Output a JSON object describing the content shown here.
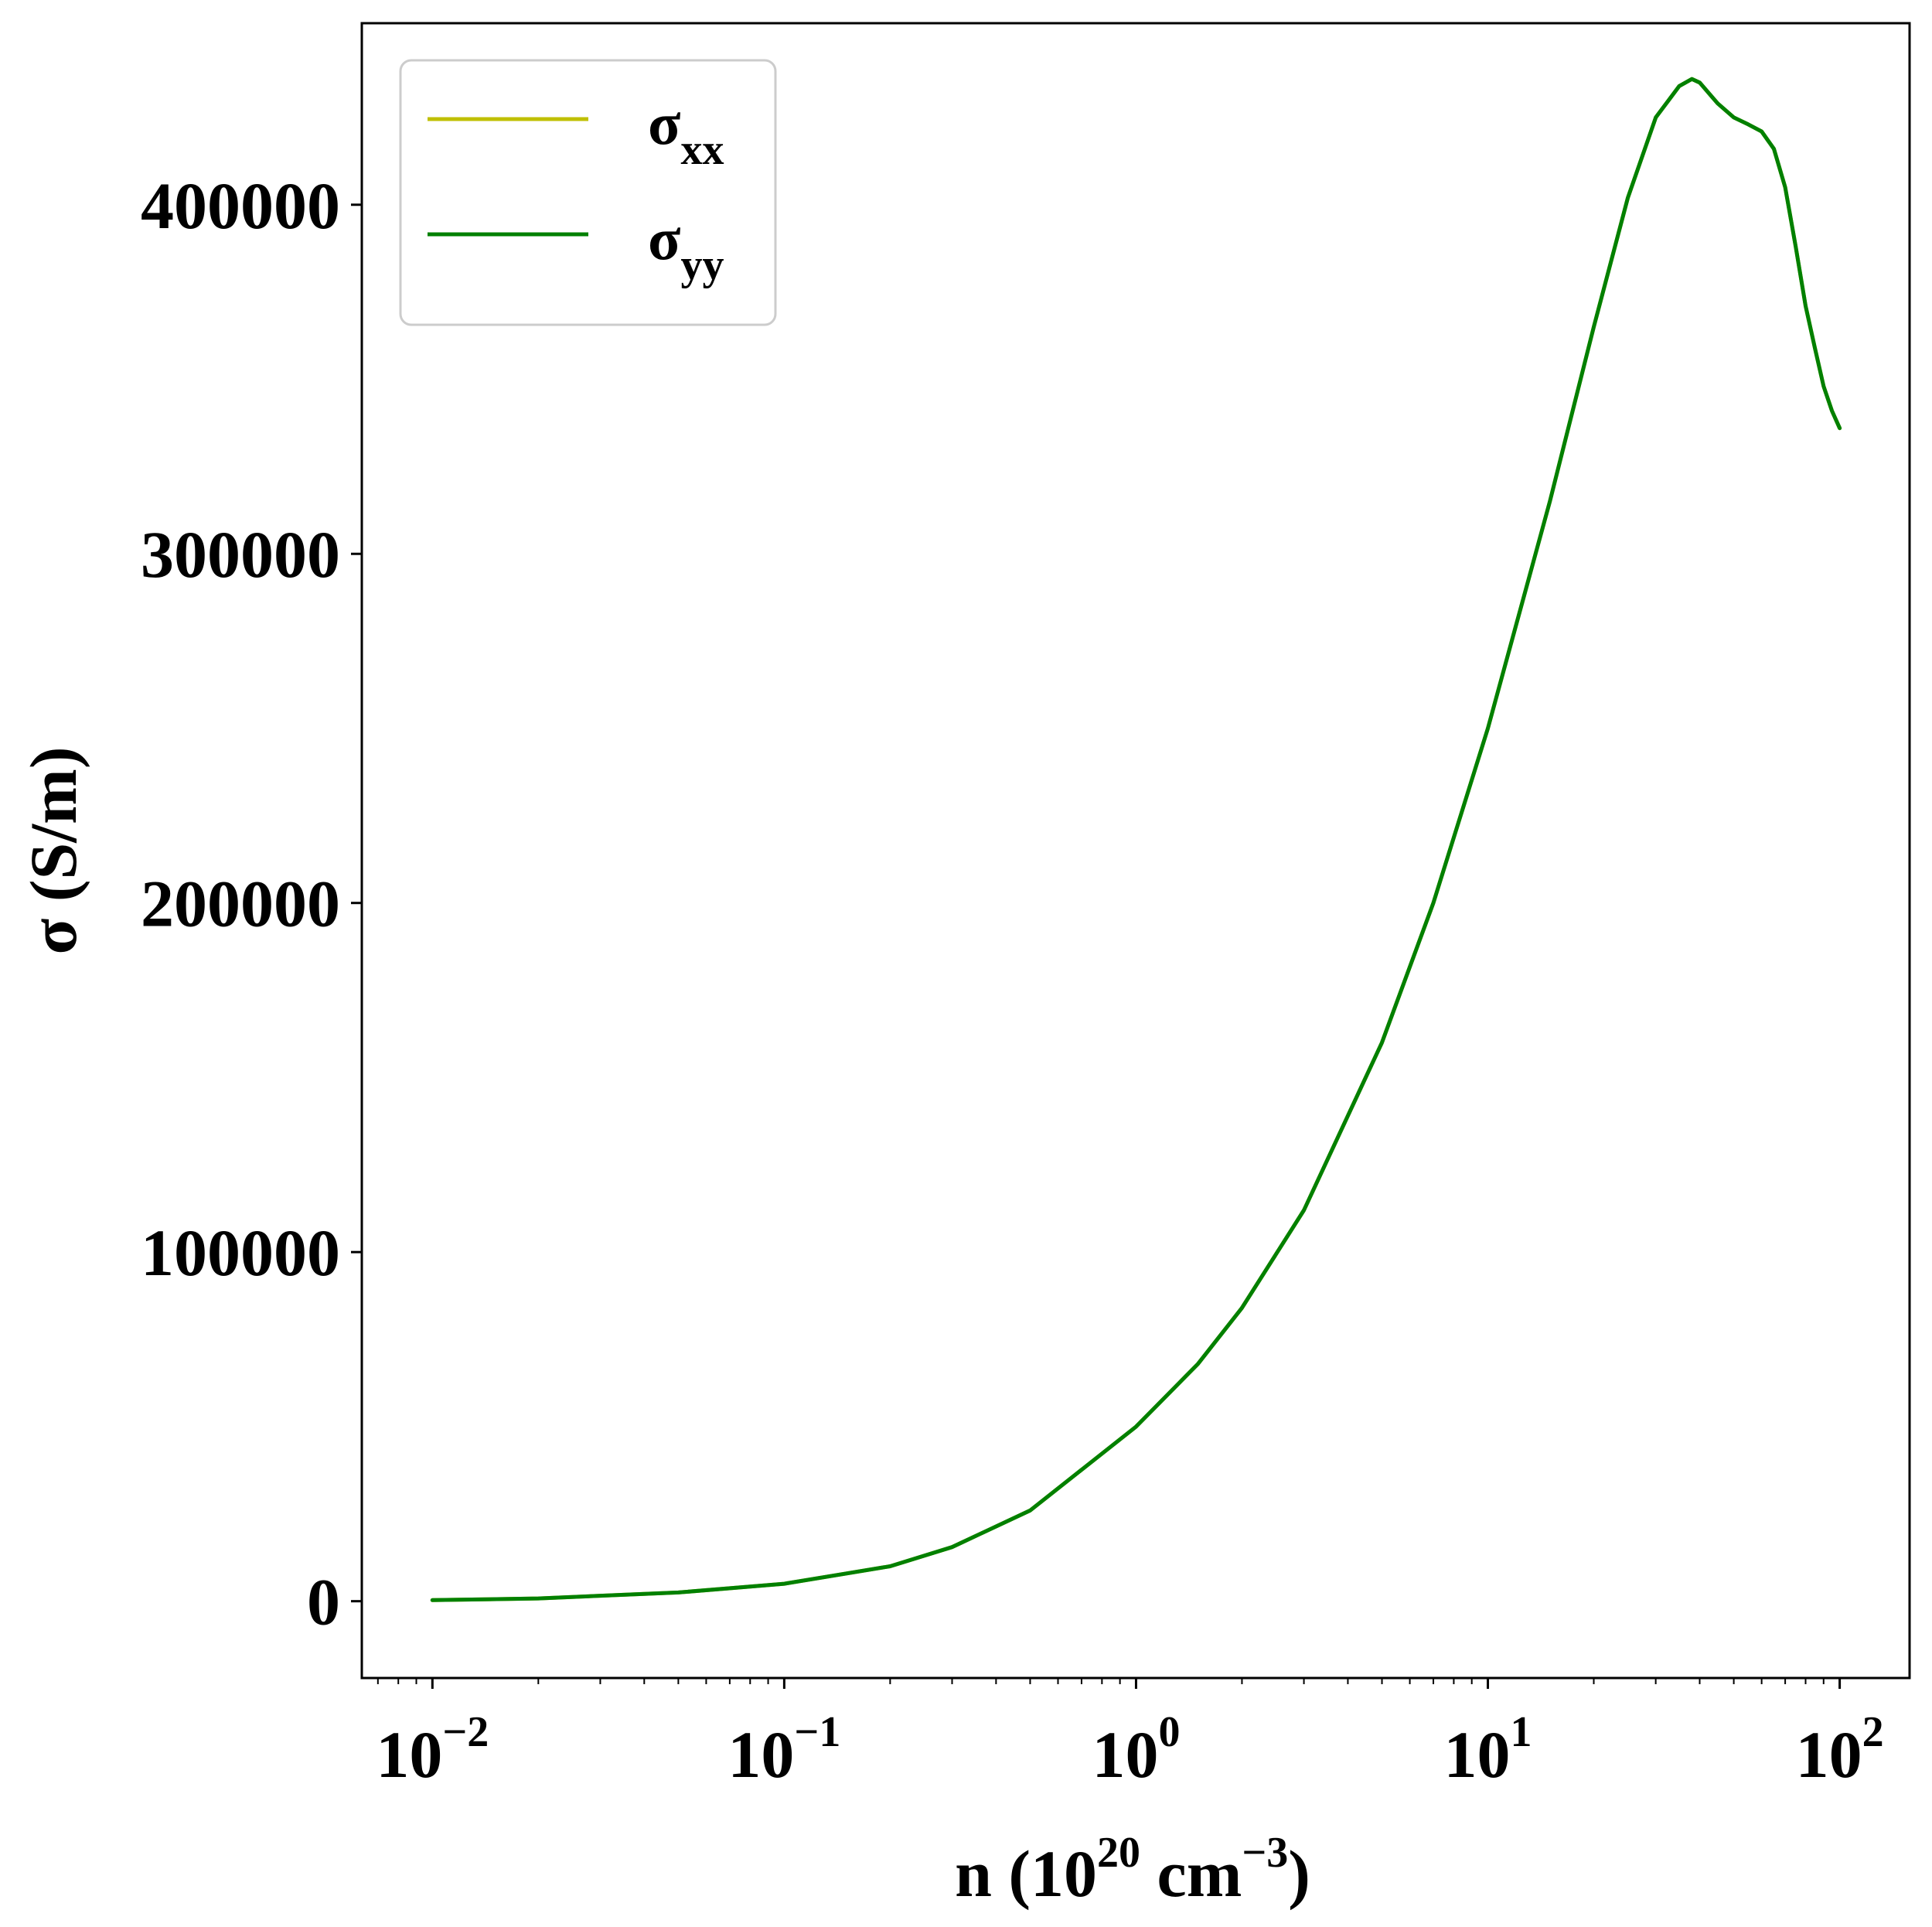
{
  "chart_data": {
    "type": "line",
    "title": "",
    "x_scale": "log",
    "xlabel": {
      "base": "n (10",
      "sup1": "20",
      "mid": " cm",
      "sup2": "−3",
      "end": ")"
    },
    "ylabel": "σ (S/m)",
    "xlim": [
      0.0063,
      158
    ],
    "ylim": [
      -22000,
      452000
    ],
    "x_ticks": [
      {
        "value": 0.01,
        "base": "10",
        "exp": "−2"
      },
      {
        "value": 0.1,
        "base": "10",
        "exp": "−1"
      },
      {
        "value": 1,
        "base": "10",
        "exp": "0"
      },
      {
        "value": 10,
        "base": "10",
        "exp": "1"
      },
      {
        "value": 100,
        "base": "10",
        "exp": "2"
      }
    ],
    "y_ticks": [
      {
        "value": 0,
        "label": "0"
      },
      {
        "value": 100000,
        "label": "100000"
      },
      {
        "value": 200000,
        "label": "200000"
      },
      {
        "value": 300000,
        "label": "300000"
      },
      {
        "value": 400000,
        "label": "400000"
      }
    ],
    "legend": {
      "placement": "top-left",
      "entries": [
        {
          "symbol": "σ",
          "sub": "xx",
          "color": "#bfbf00"
        },
        {
          "symbol": "σ",
          "sub": "yy",
          "color": "#008000"
        }
      ]
    },
    "grid": false,
    "series": [
      {
        "color": "#bfbf00",
        "x": [
          0.01,
          0.02,
          0.05,
          0.1,
          0.2,
          0.3,
          0.5,
          1,
          1.5,
          2,
          3,
          5,
          7,
          10,
          15,
          20,
          25,
          30,
          35,
          38,
          40,
          45,
          50,
          55,
          60,
          65,
          70,
          75,
          80,
          85,
          90,
          95,
          100
        ],
        "y": [
          300,
          800,
          2500,
          5000,
          10000,
          15500,
          26000,
          50000,
          68000,
          84000,
          112000,
          160000,
          200000,
          250000,
          315000,
          365000,
          402000,
          425000,
          434000,
          436000,
          435000,
          429000,
          425000,
          423000,
          421000,
          416000,
          405000,
          388000,
          371000,
          359000,
          348000,
          341000,
          336000
        ]
      },
      {
        "color": "#008000",
        "x": [
          0.01,
          0.02,
          0.05,
          0.1,
          0.2,
          0.3,
          0.5,
          1,
          1.5,
          2,
          3,
          5,
          7,
          10,
          15,
          20,
          25,
          30,
          35,
          38,
          40,
          45,
          50,
          55,
          60,
          65,
          70,
          75,
          80,
          85,
          90,
          95,
          100
        ],
        "y": [
          300,
          800,
          2500,
          5000,
          10000,
          15500,
          26000,
          50000,
          68000,
          84000,
          112000,
          160000,
          200000,
          250000,
          315000,
          365000,
          402000,
          425000,
          434000,
          436000,
          435000,
          429000,
          425000,
          423000,
          421000,
          416000,
          405000,
          388000,
          371000,
          359000,
          348000,
          341000,
          336000
        ]
      }
    ]
  }
}
